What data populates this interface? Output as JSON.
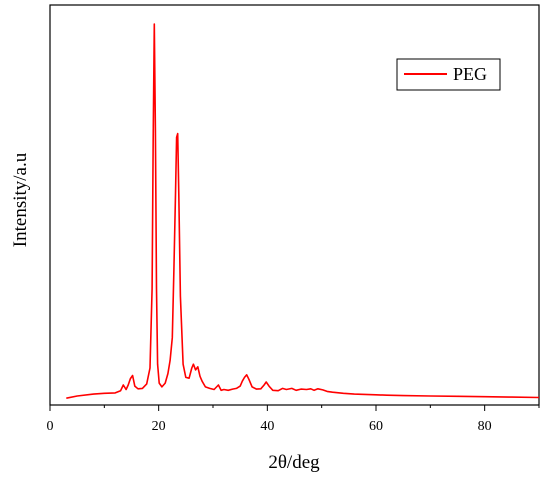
{
  "chart_data": {
    "type": "line",
    "xlabel": "2θ/deg",
    "ylabel": "Intensity/a.u",
    "xlim": [
      0,
      90
    ],
    "ylim": [
      0,
      100
    ],
    "xticks": [
      0,
      20,
      40,
      60,
      80
    ],
    "y_tick_labels": false,
    "grid": false,
    "legend_position": "top-right",
    "series": [
      {
        "name": "PEG",
        "color": "#ff0000",
        "x": [
          3,
          5,
          8,
          10,
          12,
          13,
          13.5,
          14,
          14.4,
          14.8,
          15.2,
          15.6,
          16.2,
          17,
          17.8,
          18.4,
          18.8,
          19,
          19.2,
          19.4,
          19.6,
          19.8,
          20.1,
          20.6,
          21.2,
          21.7,
          22.1,
          22.5,
          22.8,
          23.1,
          23.3,
          23.5,
          23.7,
          24,
          24.5,
          25,
          25.6,
          26.1,
          26.4,
          26.8,
          27.2,
          27.6,
          28,
          28.6,
          29.4,
          30.2,
          31,
          31.5,
          32,
          32.8,
          33.6,
          34.3,
          35,
          35.4,
          35.8,
          36.2,
          36.6,
          37.2,
          38,
          38.8,
          39.4,
          39.8,
          40.3,
          41,
          42,
          42.8,
          43.5,
          44.5,
          45.3,
          46.2,
          47.2,
          48,
          48.6,
          49.3,
          50.2,
          51,
          52,
          54,
          56,
          58,
          60,
          62,
          65,
          70,
          75,
          80,
          85,
          90
        ],
        "y": [
          1,
          1.6,
          2.1,
          2.3,
          2.4,
          3,
          4.5,
          3.3,
          4.5,
          6.2,
          7,
          4.2,
          3.5,
          3.6,
          4.8,
          9,
          30,
          70,
          100,
          72,
          30,
          10,
          5,
          4,
          5,
          7.5,
          11,
          17,
          35,
          55,
          70,
          71,
          55,
          28,
          10,
          6.5,
          6.3,
          9,
          10,
          8.5,
          9.3,
          6.8,
          5.5,
          4,
          3.6,
          3.3,
          4.5,
          3.1,
          3.3,
          3.1,
          3.4,
          3.6,
          4.2,
          5.5,
          6.5,
          7.2,
          6,
          4,
          3.4,
          3.5,
          4.5,
          5.3,
          4.2,
          3.1,
          3,
          3.6,
          3.3,
          3.6,
          3.1,
          3.4,
          3.3,
          3.5,
          3.1,
          3.5,
          3.2,
          2.8,
          2.6,
          2.3,
          2.1,
          2,
          1.9,
          1.8,
          1.7,
          1.6,
          1.5,
          1.4,
          1.3,
          1.2
        ]
      }
    ]
  }
}
